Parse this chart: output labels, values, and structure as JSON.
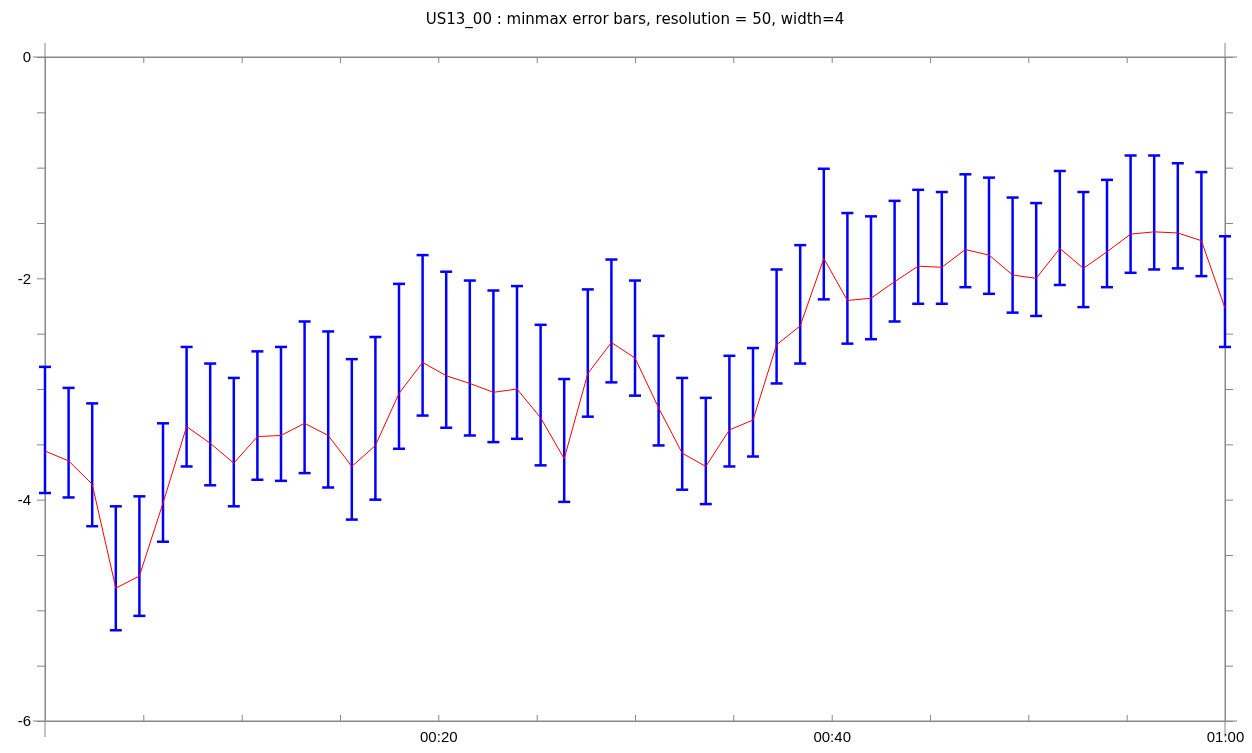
{
  "chart_data": {
    "type": "line",
    "title": "US13_00 : minmax error bars, resolution = 50, width=4",
    "x": [
      0,
      0.02,
      0.04,
      0.06,
      0.08,
      0.1,
      0.12,
      0.14,
      0.16,
      0.18,
      0.2,
      0.22,
      0.24,
      0.26,
      0.28,
      0.3,
      0.32,
      0.34,
      0.36,
      0.38,
      0.4,
      0.42,
      0.44,
      0.46,
      0.48,
      0.5,
      0.52,
      0.54,
      0.56,
      0.58,
      0.6,
      0.62,
      0.64,
      0.66,
      0.68,
      0.7,
      0.72,
      0.74,
      0.76,
      0.78,
      0.8,
      0.82,
      0.84,
      0.86,
      0.88,
      0.9,
      0.92,
      0.94,
      0.96,
      0.98,
      1
    ],
    "xlim": [
      0,
      1
    ],
    "xticks": [
      {
        "value": 0,
        "label": null
      },
      {
        "value": 0.0833,
        "label": null
      },
      {
        "value": 0.1667,
        "label": null
      },
      {
        "value": 0.25,
        "label": null
      },
      {
        "value": 0.3333,
        "label": "00:20"
      },
      {
        "value": 0.4167,
        "label": null
      },
      {
        "value": 0.5,
        "label": null
      },
      {
        "value": 0.5833,
        "label": null
      },
      {
        "value": 0.6667,
        "label": "00:40"
      },
      {
        "value": 0.75,
        "label": null
      },
      {
        "value": 0.8333,
        "label": null
      },
      {
        "value": 0.9167,
        "label": null
      },
      {
        "value": 1,
        "label": "01:00"
      }
    ],
    "ylim": [
      -6,
      0
    ],
    "yticks": [
      0,
      {
        "value": -0.5,
        "label": null
      },
      {
        "value": -1,
        "label": null
      },
      {
        "value": -1.5,
        "label": null
      },
      -2,
      {
        "value": -2.5,
        "label": null
      },
      {
        "value": -3,
        "label": null
      },
      {
        "value": -3.5,
        "label": null
      },
      -4,
      {
        "value": -4.5,
        "label": null
      },
      {
        "value": -5,
        "label": null
      },
      {
        "value": -5.5,
        "label": null
      },
      -6
    ],
    "series": [
      {
        "color": "#ff0000",
        "values": [
          -3.56,
          -3.65,
          -3.86,
          -4.8,
          -4.69,
          -4.03,
          -3.34,
          -3.49,
          -3.67,
          -3.43,
          -3.42,
          -3.31,
          -3.42,
          -3.7,
          -3.51,
          -3.04,
          -2.76,
          -2.88,
          -2.95,
          -3.03,
          -3.0,
          -3.26,
          -3.63,
          -2.86,
          -2.58,
          -2.72,
          -3.17,
          -3.58,
          -3.7,
          -3.37,
          -3.28,
          -2.6,
          -2.43,
          -1.82,
          -2.2,
          -2.18,
          -2.03,
          -1.89,
          -1.9,
          -1.74,
          -1.79,
          -1.97,
          -2.0,
          -1.73,
          -1.91,
          -1.76,
          -1.6,
          -1.58,
          -1.59,
          -1.66,
          -2.27
        ],
        "errors": [
          [
            -3.94,
            -2.8
          ],
          [
            -3.98,
            -2.99
          ],
          [
            -4.24,
            -3.13
          ],
          [
            -5.18,
            -4.06
          ],
          [
            -5.05,
            -3.97
          ],
          [
            -4.38,
            -3.31
          ],
          [
            -3.7,
            -2.62
          ],
          [
            -3.87,
            -2.77
          ],
          [
            -4.06,
            -2.9
          ],
          [
            -3.82,
            -2.66
          ],
          [
            -3.83,
            -2.62
          ],
          [
            -3.76,
            -2.39
          ],
          [
            -3.89,
            -2.48
          ],
          [
            -4.18,
            -2.73
          ],
          [
            -4.0,
            -2.53
          ],
          [
            -3.54,
            -2.05
          ],
          [
            -3.24,
            -1.79
          ],
          [
            -3.35,
            -1.94
          ],
          [
            -3.42,
            -2.02
          ],
          [
            -3.48,
            -2.11
          ],
          [
            -3.45,
            -2.07
          ],
          [
            -3.69,
            -2.42
          ],
          [
            -4.02,
            -2.91
          ],
          [
            -3.25,
            -2.1
          ],
          [
            -2.94,
            -1.83
          ],
          [
            -3.06,
            -2.02
          ],
          [
            -3.51,
            -2.52
          ],
          [
            -3.91,
            -2.9
          ],
          [
            -4.04,
            -3.08
          ],
          [
            -3.7,
            -2.7
          ],
          [
            -3.61,
            -2.63
          ],
          [
            -2.95,
            -1.92
          ],
          [
            -2.77,
            -1.7
          ],
          [
            -2.19,
            -1.01
          ],
          [
            -2.59,
            -1.41
          ],
          [
            -2.55,
            -1.44
          ],
          [
            -2.39,
            -1.3
          ],
          [
            -2.23,
            -1.2
          ],
          [
            -2.23,
            -1.22
          ],
          [
            -2.08,
            -1.06
          ],
          [
            -2.14,
            -1.09
          ],
          [
            -2.31,
            -1.27
          ],
          [
            -2.34,
            -1.32
          ],
          [
            -2.06,
            -1.03
          ],
          [
            -2.26,
            -1.22
          ],
          [
            -2.08,
            -1.11
          ],
          [
            -1.95,
            -0.89
          ],
          [
            -1.92,
            -0.89
          ],
          [
            -1.91,
            -0.96
          ],
          [
            -1.98,
            -1.04
          ],
          [
            -2.62,
            -1.62
          ]
        ]
      }
    ]
  }
}
